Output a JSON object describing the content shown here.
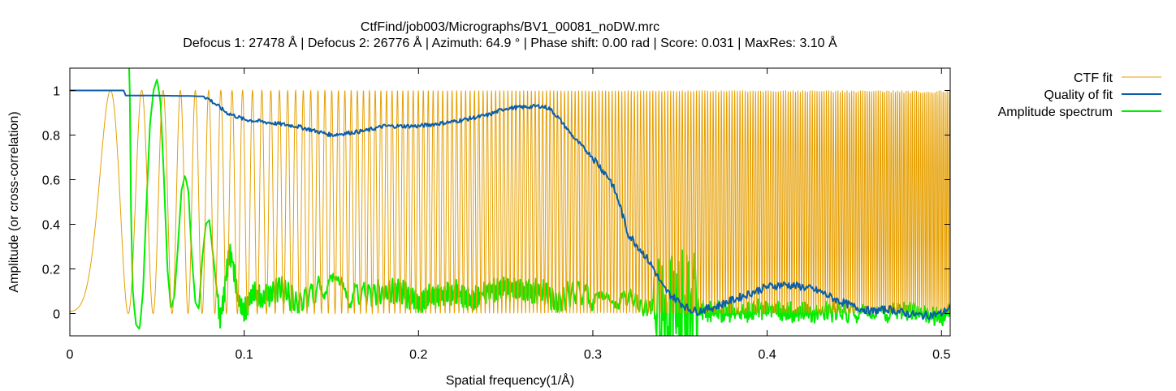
{
  "chart_data": {
    "type": "line",
    "title": "CtfFind/job003/Micrographs/BV1_00081_noDW.mrc",
    "subtitle": "Defocus 1: 27478 Å | Defocus 2: 26776 Å | Azimuth: 64.9 ° | Phase shift: 0.00 rad | Score: 0.031 | MaxRes: 3.10 Å",
    "xlabel": "Spatial frequency(1/Å)",
    "ylabel": "Amplitude (or cross-correlation)",
    "xlim": [
      0,
      0.505
    ],
    "ylim": [
      -0.1,
      1.1
    ],
    "xticks": [
      0,
      0.1,
      0.2,
      0.3,
      0.4,
      0.5
    ],
    "xtick_labels": [
      "0",
      "0.1",
      "0.2",
      "0.3",
      "0.4",
      "0.5"
    ],
    "yticks": [
      0,
      0.2,
      0.4,
      0.6,
      0.8,
      1
    ],
    "ytick_labels": [
      "0",
      "0.2",
      "0.4",
      "0.6",
      "0.8",
      "1"
    ],
    "grid": false,
    "legend_position": "outside-top-right",
    "series": [
      {
        "name": "CTF fit",
        "color": "#e69f00",
        "model": "ctf-squared",
        "amplitude_contrast": 0.1,
        "x_start": 0.0,
        "x_end": 0.505,
        "first_zero_x": 0.0335,
        "first_peak_x": 0.0285
      },
      {
        "name": "Quality of fit",
        "color": "#0b5ea8",
        "x": [
          0.0,
          0.031,
          0.032,
          0.05,
          0.07,
          0.077,
          0.08,
          0.09,
          0.1,
          0.11,
          0.13,
          0.15,
          0.17,
          0.18,
          0.2,
          0.22,
          0.24,
          0.25,
          0.27,
          0.275,
          0.28,
          0.29,
          0.3,
          0.31,
          0.315,
          0.32,
          0.33,
          0.335,
          0.34,
          0.345,
          0.35,
          0.355,
          0.36,
          0.37,
          0.38,
          0.39,
          0.4,
          0.41,
          0.42,
          0.43,
          0.44,
          0.45,
          0.46,
          0.47,
          0.48,
          0.49,
          0.5,
          0.505
        ],
        "y": [
          1.0,
          1.0,
          0.977,
          0.977,
          0.975,
          0.973,
          0.96,
          0.9,
          0.87,
          0.86,
          0.84,
          0.8,
          0.82,
          0.84,
          0.84,
          0.86,
          0.89,
          0.92,
          0.93,
          0.92,
          0.88,
          0.78,
          0.7,
          0.6,
          0.5,
          0.36,
          0.26,
          0.2,
          0.12,
          0.08,
          0.05,
          0.02,
          0.01,
          0.03,
          0.06,
          0.09,
          0.12,
          0.13,
          0.12,
          0.1,
          0.06,
          0.03,
          0.01,
          0.02,
          0.0,
          -0.01,
          0.0,
          0.03
        ]
      },
      {
        "name": "Amplitude spectrum",
        "color": "#00ee00",
        "x": [
          0.034,
          0.0345,
          0.035,
          0.036,
          0.037,
          0.038,
          0.04,
          0.042,
          0.044,
          0.046,
          0.048,
          0.05,
          0.052,
          0.054,
          0.056,
          0.058,
          0.06,
          0.062,
          0.064,
          0.066,
          0.068,
          0.07,
          0.072,
          0.074,
          0.076,
          0.078,
          0.08,
          0.083,
          0.086,
          0.088,
          0.09,
          0.092,
          0.094,
          0.096,
          0.1,
          0.105,
          0.11,
          0.12,
          0.13,
          0.14,
          0.15,
          0.16,
          0.17,
          0.18,
          0.19,
          0.2,
          0.21,
          0.22,
          0.23,
          0.24,
          0.25,
          0.26,
          0.27,
          0.28,
          0.29,
          0.3,
          0.31,
          0.32,
          0.33,
          0.34,
          0.35,
          0.36,
          0.38,
          0.4,
          0.42,
          0.44,
          0.46,
          0.48,
          0.5,
          0.505
        ],
        "y": [
          1.1,
          0.95,
          0.5,
          0.12,
          0.02,
          -0.05,
          -0.07,
          0.1,
          0.5,
          0.85,
          1.0,
          1.05,
          0.95,
          0.6,
          0.2,
          0.02,
          0.08,
          0.3,
          0.55,
          0.62,
          0.55,
          0.25,
          0.05,
          0.02,
          0.25,
          0.4,
          0.42,
          0.2,
          -0.02,
          0.05,
          0.2,
          0.28,
          0.2,
          0.08,
          0.0,
          0.1,
          0.06,
          0.12,
          0.05,
          0.1,
          0.12,
          0.08,
          0.1,
          0.09,
          0.1,
          0.05,
          0.08,
          0.1,
          0.06,
          0.1,
          0.12,
          0.1,
          0.1,
          0.06,
          0.1,
          0.07,
          0.04,
          0.08,
          0.02,
          0.05,
          0.03,
          0.02,
          0.0,
          0.02,
          0.0,
          0.01,
          -0.01,
          0.02,
          -0.02,
          0.02
        ]
      }
    ]
  }
}
